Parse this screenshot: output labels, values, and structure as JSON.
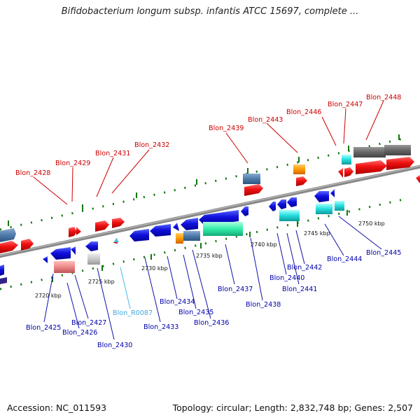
{
  "title": "Bifidobacterium longum subsp. infantis ATCC 15697, complete ...",
  "footer": {
    "accession": "Accession: NC_011593",
    "topology": "Topology: circular; Length: 2,832,748 bp; Genes: 2,507"
  },
  "colors": {
    "forward": "#ee1111",
    "reverse": "#1111dd",
    "rna": "#44bbee",
    "backbone": "#8a8a8a",
    "tick_green": "#117711"
  },
  "ticks": [
    "2720 kbp",
    "2725 kbp",
    "2730 kbp",
    "2735 kbp",
    "2740 kbp",
    "2745 kbp",
    "2750 kbp"
  ],
  "genes_top": [
    "Blon_2428",
    "Blon_2429",
    "Blon_2431",
    "Blon_2432",
    "Blon_2439",
    "Blon_2443",
    "Blon_2446",
    "Blon_2447",
    "Blon_2448"
  ],
  "genes_bottom": [
    "Blon_2425",
    "Blon_2426",
    "Blon_2427",
    "Blon_2430",
    "Blon_R0087",
    "Blon_2433",
    "Blon_2434",
    "Blon_2435",
    "Blon_2436",
    "Blon_2437",
    "Blon_2438",
    "Blon_2440",
    "Blon_2441",
    "Blon_2442",
    "Blon_2444",
    "Blon_2445"
  ]
}
